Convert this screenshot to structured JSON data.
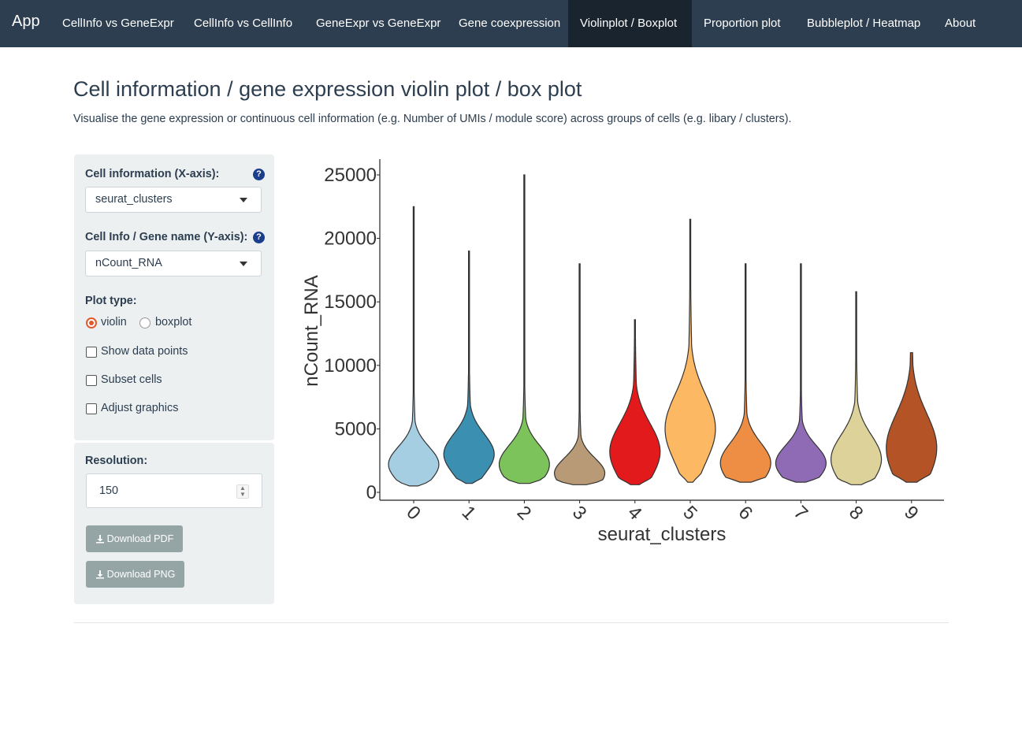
{
  "nav": {
    "brand": "App",
    "items": [
      {
        "label": "CellInfo vs GeneExpr",
        "active": false
      },
      {
        "label": "CellInfo vs CellInfo",
        "active": false
      },
      {
        "label": "GeneExpr vs GeneExpr",
        "active": false
      },
      {
        "label": "Gene coexpression",
        "active": false
      },
      {
        "label": "Violinplot / Boxplot",
        "active": true
      },
      {
        "label": "Proportion plot",
        "active": false
      },
      {
        "label": "Bubbleplot / Heatmap",
        "active": false
      },
      {
        "label": "About",
        "active": false
      }
    ]
  },
  "page": {
    "title": "Cell information / gene expression violin plot / box plot",
    "subtitle": "Visualise the gene expression or continuous cell information (e.g. Number of UMIs / module score) across groups of cells (e.g. libary / clusters)."
  },
  "sidebar": {
    "x_axis": {
      "label": "Cell information (X-axis):",
      "value": "seurat_clusters"
    },
    "y_axis": {
      "label": "Cell Info / Gene name (Y-axis):",
      "value": "nCount_RNA"
    },
    "plot_type": {
      "label": "Plot type:",
      "options": [
        "violin",
        "boxplot"
      ],
      "selected": "violin"
    },
    "checkboxes": [
      {
        "label": "Show data points",
        "checked": false
      },
      {
        "label": "Subset cells",
        "checked": false
      },
      {
        "label": "Adjust graphics",
        "checked": false
      }
    ],
    "resolution": {
      "label": "Resolution:",
      "value": "150"
    },
    "download_pdf": "Download PDF",
    "download_png": "Download PNG"
  },
  "chart_data": {
    "type": "violin",
    "xlabel": "seurat_clusters",
    "ylabel": "nCount_RNA",
    "ylim": [
      0,
      27000
    ],
    "yticks": [
      0,
      5000,
      10000,
      15000,
      20000,
      25000
    ],
    "grid": false,
    "categories": [
      "0",
      "1",
      "2",
      "3",
      "4",
      "5",
      "6",
      "7",
      "8",
      "9"
    ],
    "colors": [
      "#a6cee3",
      "#3b8fb0",
      "#7dc35c",
      "#b89a76",
      "#e31a1c",
      "#fdb863",
      "#ee8e45",
      "#8f6ab5",
      "#ddd39a",
      "#b35326"
    ],
    "violins": [
      {
        "category": "0",
        "min": 500,
        "max": 22500,
        "peak": 2200,
        "spread": 1400
      },
      {
        "category": "1",
        "min": 700,
        "max": 19000,
        "peak": 3000,
        "spread": 1600
      },
      {
        "category": "2",
        "min": 700,
        "max": 25000,
        "peak": 2200,
        "spread": 1500
      },
      {
        "category": "3",
        "min": 600,
        "max": 18000,
        "peak": 1500,
        "spread": 1200
      },
      {
        "category": "4",
        "min": 600,
        "max": 13600,
        "peak": 3200,
        "spread": 2200
      },
      {
        "category": "5",
        "min": 800,
        "max": 21500,
        "peak": 5000,
        "spread": 2700
      },
      {
        "category": "6",
        "min": 800,
        "max": 18000,
        "peak": 2300,
        "spread": 1600
      },
      {
        "category": "7",
        "min": 800,
        "max": 18000,
        "peak": 2300,
        "spread": 1400
      },
      {
        "category": "8",
        "min": 600,
        "max": 15800,
        "peak": 2600,
        "spread": 1900
      },
      {
        "category": "9",
        "min": 800,
        "max": 11000,
        "peak": 3500,
        "spread": 2700
      }
    ]
  }
}
